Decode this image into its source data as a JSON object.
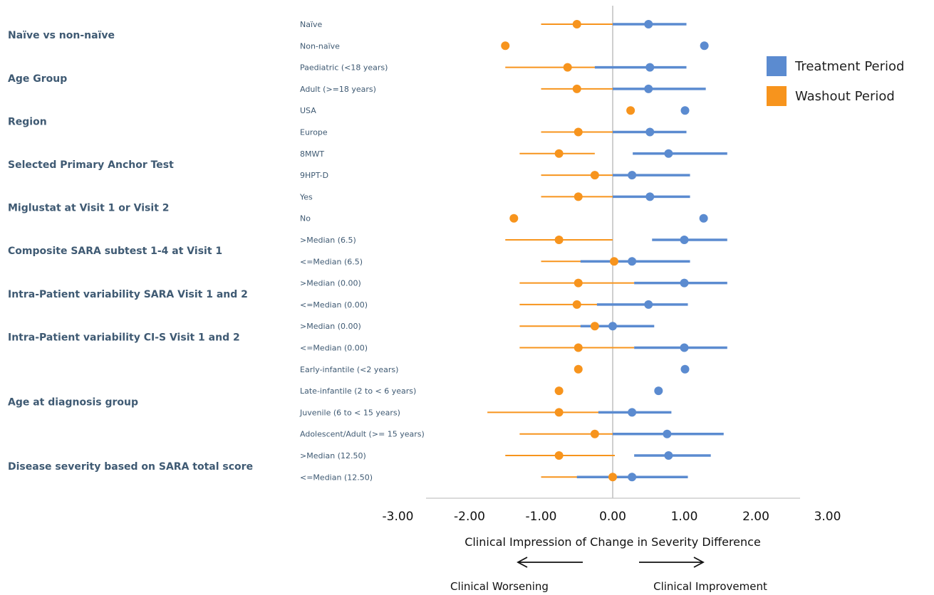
{
  "chart_data": {
    "type": "forest",
    "x_ticks": [
      "-3.00",
      "-2.00",
      "-1.00",
      "0.00",
      "1.00",
      "2.00",
      "3.00"
    ],
    "xlim": [
      -3,
      3
    ],
    "xlabel": "Clinical Impression of Change in Severity Difference",
    "direction_labels": {
      "left": "Clinical Worsening",
      "right": "Clinical Improvement"
    },
    "legend": [
      {
        "name": "Treatment Period",
        "color": "#5b8bd0"
      },
      {
        "name": "Washout Period",
        "color": "#f7941d"
      }
    ],
    "groups": [
      {
        "label": "Naïve vs non-naïve",
        "rows": [
          0,
          1
        ]
      },
      {
        "label": "Age Group",
        "rows": [
          2,
          3
        ]
      },
      {
        "label": "Region",
        "rows": [
          4,
          5
        ]
      },
      {
        "label": "Selected Primary Anchor Test",
        "rows": [
          6,
          7
        ]
      },
      {
        "label": "Miglustat  at Visit 1 or Visit 2",
        "rows": [
          8,
          9
        ]
      },
      {
        "label": "Composite SARA subtest 1-4  at Visit 1",
        "rows": [
          10,
          11
        ]
      },
      {
        "label": "Intra-Patient variability SARA Visit 1 and 2",
        "rows": [
          12,
          13
        ]
      },
      {
        "label": "Intra-Patient variability CI-S Visit 1 and 2",
        "rows": [
          14,
          15
        ]
      },
      {
        "label": "Age at diagnosis group",
        "rows": [
          16,
          17,
          18,
          19
        ]
      },
      {
        "label": "Disease severity based on SARA total score",
        "rows": [
          20,
          21
        ]
      }
    ],
    "rows": [
      {
        "label": "Naïve",
        "treatment": {
          "est": 0.5,
          "lo": 0.0,
          "hi": 1.03
        },
        "washout": {
          "est": -0.5,
          "lo": -1.0,
          "hi": 0.0
        }
      },
      {
        "label": "Non-naïve",
        "treatment": {
          "est": 1.28,
          "lo": null,
          "hi": null
        },
        "washout": {
          "est": -1.5,
          "lo": null,
          "hi": null
        }
      },
      {
        "label": "Paediatric (<18 years)",
        "treatment": {
          "est": 0.52,
          "lo": -0.25,
          "hi": 1.03
        },
        "washout": {
          "est": -0.63,
          "lo": -1.5,
          "hi": 0.0
        }
      },
      {
        "label": "Adult (>=18 years)",
        "treatment": {
          "est": 0.5,
          "lo": 0.0,
          "hi": 1.3
        },
        "washout": {
          "est": -0.5,
          "lo": -1.0,
          "hi": 0.0
        }
      },
      {
        "label": "USA",
        "treatment": {
          "est": 1.01,
          "lo": null,
          "hi": null
        },
        "washout": {
          "est": 0.25,
          "lo": null,
          "hi": null
        }
      },
      {
        "label": "Europe",
        "treatment": {
          "est": 0.52,
          "lo": 0.0,
          "hi": 1.03
        },
        "washout": {
          "est": -0.48,
          "lo": -1.0,
          "hi": 0.0
        }
      },
      {
        "label": "8MWT",
        "treatment": {
          "est": 0.78,
          "lo": 0.28,
          "hi": 1.6
        },
        "washout": {
          "est": -0.75,
          "lo": -1.3,
          "hi": -0.25
        }
      },
      {
        "label": "9HPT-D",
        "treatment": {
          "est": 0.27,
          "lo": 0.0,
          "hi": 1.08
        },
        "washout": {
          "est": -0.25,
          "lo": -1.0,
          "hi": 0.0
        }
      },
      {
        "label": "Yes",
        "treatment": {
          "est": 0.52,
          "lo": 0.0,
          "hi": 1.08
        },
        "washout": {
          "est": -0.48,
          "lo": -1.0,
          "hi": 0.0
        }
      },
      {
        "label": "No",
        "treatment": {
          "est": 1.27,
          "lo": null,
          "hi": null
        },
        "washout": {
          "est": -1.38,
          "lo": null,
          "hi": null
        }
      },
      {
        "label": ">Median (6.5)",
        "treatment": {
          "est": 1.0,
          "lo": 0.55,
          "hi": 1.6
        },
        "washout": {
          "est": -0.75,
          "lo": -1.5,
          "hi": 0.0
        }
      },
      {
        "label": "<=Median (6.5)",
        "treatment": {
          "est": 0.27,
          "lo": -0.45,
          "hi": 1.08
        },
        "washout": {
          "est": 0.02,
          "lo": -1.0,
          "hi": 0.0
        }
      },
      {
        "label": ">Median (0.00)",
        "treatment": {
          "est": 1.0,
          "lo": 0.3,
          "hi": 1.6
        },
        "washout": {
          "est": -0.48,
          "lo": -1.3,
          "hi": 0.3
        }
      },
      {
        "label": "<=Median (0.00)",
        "treatment": {
          "est": 0.5,
          "lo": -0.22,
          "hi": 1.05
        },
        "washout": {
          "est": -0.5,
          "lo": -1.3,
          "hi": 0.0
        }
      },
      {
        "label": ">Median (0.00)",
        "treatment": {
          "est": 0.0,
          "lo": -0.45,
          "hi": 0.58
        },
        "washout": {
          "est": -0.25,
          "lo": -1.3,
          "hi": 0.0
        }
      },
      {
        "label": "<=Median (0.00)",
        "treatment": {
          "est": 1.0,
          "lo": 0.3,
          "hi": 1.6
        },
        "washout": {
          "est": -0.48,
          "lo": -1.3,
          "hi": 0.3
        }
      },
      {
        "label": "Early-infantile (<2 years)",
        "treatment": {
          "est": 1.01,
          "lo": null,
          "hi": null
        },
        "washout": {
          "est": -0.48,
          "lo": null,
          "hi": null
        }
      },
      {
        "label": "Late-infantile (2 to < 6 years)",
        "treatment": {
          "est": 0.64,
          "lo": null,
          "hi": null
        },
        "washout": {
          "est": -0.75,
          "lo": null,
          "hi": null
        }
      },
      {
        "label": "Juvenile (6 to < 15 years)",
        "treatment": {
          "est": 0.27,
          "lo": -0.2,
          "hi": 0.82
        },
        "washout": {
          "est": -0.75,
          "lo": -1.75,
          "hi": 0.0
        }
      },
      {
        "label": "Adolescent/Adult (>= 15 years)",
        "treatment": {
          "est": 0.76,
          "lo": 0.0,
          "hi": 1.55
        },
        "washout": {
          "est": -0.25,
          "lo": -1.3,
          "hi": 0.0
        }
      },
      {
        "label": ">Median (12.50)",
        "treatment": {
          "est": 0.78,
          "lo": 0.3,
          "hi": 1.37
        },
        "washout": {
          "est": -0.75,
          "lo": -1.5,
          "hi": 0.03
        }
      },
      {
        "label": "<=Median (12.50)",
        "treatment": {
          "est": 0.27,
          "lo": -0.5,
          "hi": 1.05
        },
        "washout": {
          "est": 0.0,
          "lo": -1.0,
          "hi": 0.0
        }
      }
    ]
  }
}
